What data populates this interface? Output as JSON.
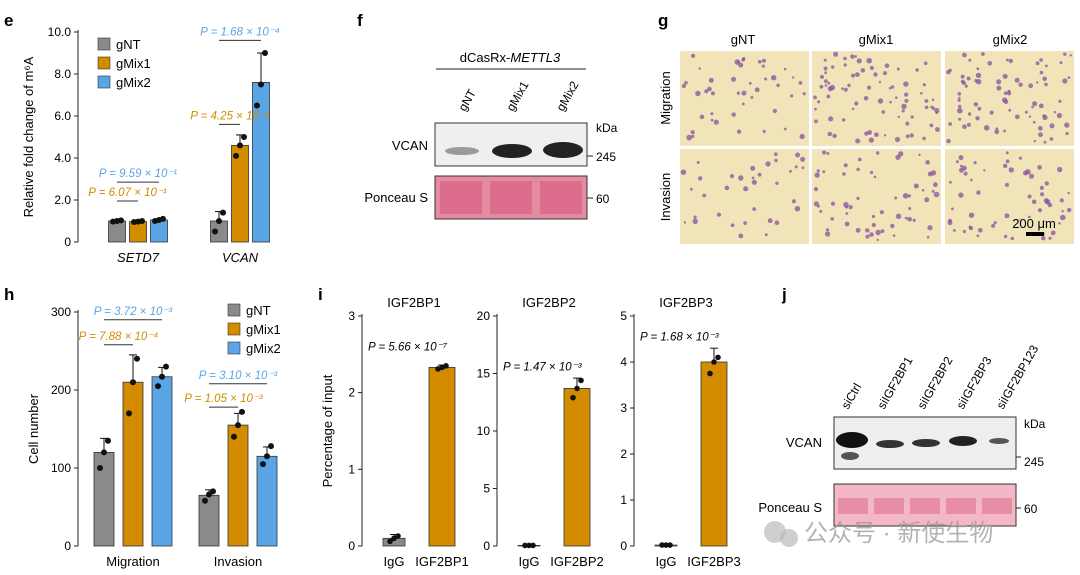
{
  "colors": {
    "gNT": "#8a8a8a",
    "gMix1": "#d38b00",
    "gMix2": "#5aa5e6",
    "p_orange": "#d38b00",
    "p_blue": "#5aa5e6",
    "axis": "#222222",
    "ponceau": "#e58ba0",
    "cells_bg": "#f0e4b8",
    "cells_dot": "#8a4fa0"
  },
  "panels": {
    "e": "e",
    "f": "f",
    "g": "g",
    "h": "h",
    "i": "i",
    "j": "j"
  },
  "chart_data": [
    {
      "id": "e",
      "type": "bar",
      "ylabel": "Relative fold change of m⁶A",
      "ylim": [
        0,
        10
      ],
      "yticks": [
        "0",
        "2.0",
        "4.0",
        "6.0",
        "8.0",
        "10.0"
      ],
      "categories": [
        "SETD7",
        "VCAN"
      ],
      "legend": [
        "gNT",
        "gMix1",
        "gMix2"
      ],
      "series": [
        {
          "name": "gNT",
          "values": [
            1.0,
            1.0
          ],
          "err": [
            0.05,
            0.45
          ],
          "points": [
            [
              0.97,
              1.0,
              1.03
            ],
            [
              0.5,
              1.0,
              1.4
            ]
          ]
        },
        {
          "name": "gMix1",
          "values": [
            0.97,
            4.6
          ],
          "err": [
            0.05,
            0.5
          ],
          "points": [
            [
              0.95,
              0.97,
              1.0
            ],
            [
              4.1,
              4.6,
              5.0
            ]
          ]
        },
        {
          "name": "gMix2",
          "values": [
            1.05,
            7.6
          ],
          "err": [
            0.05,
            1.4
          ],
          "points": [
            [
              1.0,
              1.05,
              1.1
            ],
            [
              6.5,
              7.5,
              9.0
            ]
          ]
        }
      ],
      "annotations": [
        {
          "text": "P = 9.59 × 10⁻¹",
          "color": "blue",
          "group": 0,
          "y": 2.85
        },
        {
          "text": "P = 6.07 × 10⁻¹",
          "color": "orange",
          "group": 0,
          "y": 1.95
        },
        {
          "text": "P = 1.68 × 10⁻⁴",
          "color": "blue",
          "group": 1,
          "y": 9.6
        },
        {
          "text": "P = 4.25 × 10⁻³",
          "color": "orange",
          "group": 1,
          "y": 5.6
        }
      ]
    },
    {
      "id": "h",
      "type": "bar",
      "ylabel": "Cell number",
      "ylim": [
        0,
        300
      ],
      "yticks": [
        "0",
        "100",
        "200",
        "300"
      ],
      "categories": [
        "Migration",
        "Invasion"
      ],
      "legend": [
        "gNT",
        "gMix1",
        "gMix2"
      ],
      "series": [
        {
          "name": "gNT",
          "values": [
            120,
            65
          ],
          "err": [
            18,
            7
          ],
          "points": [
            [
              100,
              120,
              135
            ],
            [
              58,
              66,
              70
            ]
          ]
        },
        {
          "name": "gMix1",
          "values": [
            210,
            155
          ],
          "err": [
            35,
            15
          ],
          "points": [
            [
              170,
              210,
              240
            ],
            [
              140,
              155,
              172
            ]
          ]
        },
        {
          "name": "gMix2",
          "values": [
            217,
            115
          ],
          "err": [
            12,
            12
          ],
          "points": [
            [
              205,
              217,
              230
            ],
            [
              105,
              115,
              128
            ]
          ]
        }
      ],
      "annotations": [
        {
          "text": "P = 3.72 × 10⁻³",
          "color": "blue",
          "group": 0,
          "y": 290
        },
        {
          "text": "P = 7.88 × 10⁻⁴",
          "color": "orange",
          "group": 0,
          "y": 258
        },
        {
          "text": "P = 3.10 × 10⁻³",
          "color": "blue",
          "group": 1,
          "y": 208
        },
        {
          "text": "P = 1.05 × 10⁻³",
          "color": "orange",
          "group": 1,
          "y": 178
        }
      ]
    },
    {
      "id": "i1",
      "type": "bar",
      "title": "IGF2BP1",
      "ylabel": "Percentage of input",
      "ylim": [
        0,
        3
      ],
      "yticks": [
        "0",
        "1",
        "2",
        "3"
      ],
      "categories": [
        "IgG",
        "IGF2BP1"
      ],
      "values": [
        0.1,
        2.33
      ],
      "err": [
        0.05,
        0.03
      ],
      "points": [
        [
          0.06,
          0.1,
          0.13
        ],
        [
          2.31,
          2.33,
          2.35
        ]
      ],
      "colors": [
        "gNT",
        "gMix1"
      ],
      "annotation": "P = 5.66 × 10⁻⁷",
      "annotation_y": 2.6
    },
    {
      "id": "i2",
      "type": "bar",
      "title": "IGF2BP2",
      "ylim": [
        0,
        20
      ],
      "yticks": [
        "0",
        "5",
        "10",
        "15",
        "20"
      ],
      "categories": [
        "IgG",
        "IGF2BP2"
      ],
      "values": [
        0.05,
        13.7
      ],
      "err": [
        0,
        0.9
      ],
      "points": [
        [
          0.05,
          0.05,
          0.05
        ],
        [
          12.9,
          13.7,
          14.4
        ]
      ],
      "colors": [
        "gNT",
        "gMix1"
      ],
      "annotation": "P = 1.47 × 10⁻³",
      "annotation_y": 15.6
    },
    {
      "id": "i3",
      "type": "bar",
      "title": "IGF2BP3",
      "ylim": [
        0,
        5
      ],
      "yticks": [
        "0",
        "1",
        "2",
        "3",
        "4",
        "5"
      ],
      "categories": [
        "IgG",
        "IGF2BP3"
      ],
      "values": [
        0.02,
        4.0
      ],
      "err": [
        0,
        0.3
      ],
      "points": [
        [
          0.02,
          0.02,
          0.02
        ],
        [
          3.75,
          4.0,
          4.1
        ]
      ],
      "colors": [
        "gNT",
        "gMix1"
      ],
      "annotation": "P = 1.68 × 10⁻³",
      "annotation_y": 4.55
    }
  ],
  "blot_f": {
    "title_prefix": "dCasRx-",
    "title_italic": "METTL3",
    "lanes": [
      "gNT",
      "gMix1",
      "gMix2"
    ],
    "rows": [
      "VCAN",
      "Ponceau S"
    ],
    "kda": "kDa",
    "markers": [
      "245",
      "60"
    ]
  },
  "micro_g": {
    "cols": [
      "gNT",
      "gMix1",
      "gMix2"
    ],
    "rows": [
      "Migration",
      "Invasion"
    ],
    "scale": "200 μm"
  },
  "blot_j": {
    "lanes": [
      "siCtrl",
      "siIGF2BP1",
      "siIGF2BP2",
      "siIGF2BP3",
      "siIGF2BP123"
    ],
    "rows": [
      "VCAN",
      "Ponceau S"
    ],
    "kda": "kDa",
    "markers": [
      "245",
      "60"
    ]
  },
  "watermark": "公众号 · 新使生物"
}
